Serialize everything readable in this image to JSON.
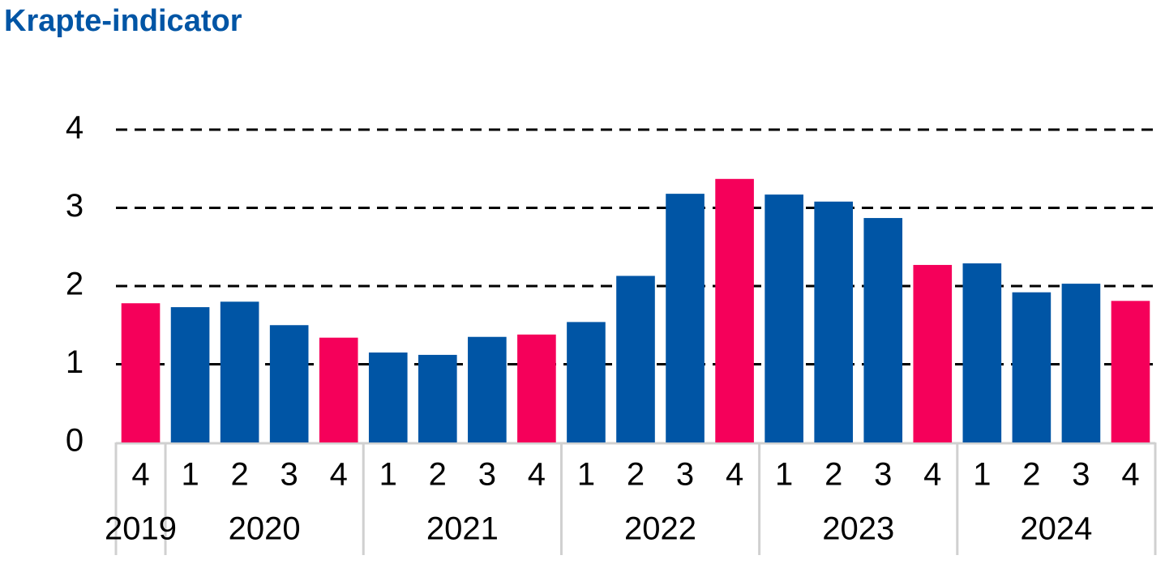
{
  "chart_data": {
    "type": "bar",
    "title": "Krapte-indicator",
    "ylim": [
      0,
      4
    ],
    "yticks": [
      0,
      1,
      2,
      3,
      4
    ],
    "grid": true,
    "groups": [
      {
        "name": "2019",
        "categories": [
          "4"
        ],
        "values": [
          1.78
        ],
        "colors": [
          "#f5005a"
        ]
      },
      {
        "name": "2020",
        "categories": [
          "1",
          "2",
          "3",
          "4"
        ],
        "values": [
          1.73,
          1.8,
          1.5,
          1.34
        ],
        "colors": [
          "#0055a5",
          "#0055a5",
          "#0055a5",
          "#f5005a"
        ]
      },
      {
        "name": "2021",
        "categories": [
          "1",
          "2",
          "3",
          "4"
        ],
        "values": [
          1.15,
          1.12,
          1.35,
          1.38
        ],
        "colors": [
          "#0055a5",
          "#0055a5",
          "#0055a5",
          "#f5005a"
        ]
      },
      {
        "name": "2022",
        "categories": [
          "1",
          "2",
          "3",
          "4"
        ],
        "values": [
          1.54,
          2.13,
          3.18,
          3.37
        ],
        "colors": [
          "#0055a5",
          "#0055a5",
          "#0055a5",
          "#f5005a"
        ]
      },
      {
        "name": "2023",
        "categories": [
          "1",
          "2",
          "3",
          "4"
        ],
        "values": [
          3.17,
          3.08,
          2.87,
          2.27
        ],
        "colors": [
          "#0055a5",
          "#0055a5",
          "#0055a5",
          "#f5005a"
        ]
      },
      {
        "name": "2024",
        "categories": [
          "1",
          "2",
          "3",
          "4"
        ],
        "values": [
          2.29,
          1.92,
          2.03,
          1.81
        ],
        "colors": [
          "#0055a5",
          "#0055a5",
          "#0055a5",
          "#f5005a"
        ]
      }
    ]
  }
}
